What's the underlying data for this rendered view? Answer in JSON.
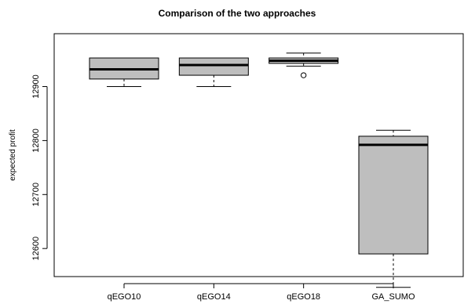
{
  "chart_data": {
    "type": "box",
    "title": "Comparison of the two approaches",
    "xlabel": "",
    "ylabel": "expected profit",
    "ylim": [
      12548,
      12998
    ],
    "yticks": [
      12600,
      12700,
      12800,
      12900
    ],
    "grid": false,
    "legend": "none",
    "box_color": "#bebebe",
    "categories": [
      "qEGO10",
      "qEGO14",
      "qEGO18",
      "GA_SUMO"
    ],
    "boxes": [
      {
        "category": "qEGO10",
        "min": 12900,
        "q1": 12914,
        "median": 12932,
        "q3": 12953,
        "max": 12953,
        "outliers": []
      },
      {
        "category": "qEGO14",
        "min": 12900,
        "q1": 12921,
        "median": 12940,
        "q3": 12953,
        "max": 12953,
        "outliers": []
      },
      {
        "category": "qEGO18",
        "min": 12938,
        "q1": 12943,
        "median": 12948,
        "q3": 12953,
        "max": 12962,
        "outliers": [
          12921
        ]
      },
      {
        "category": "GA_SUMO",
        "min": 12528,
        "q1": 12590,
        "median": 12792,
        "q3": 12808,
        "max": 12819,
        "outliers": []
      }
    ]
  }
}
